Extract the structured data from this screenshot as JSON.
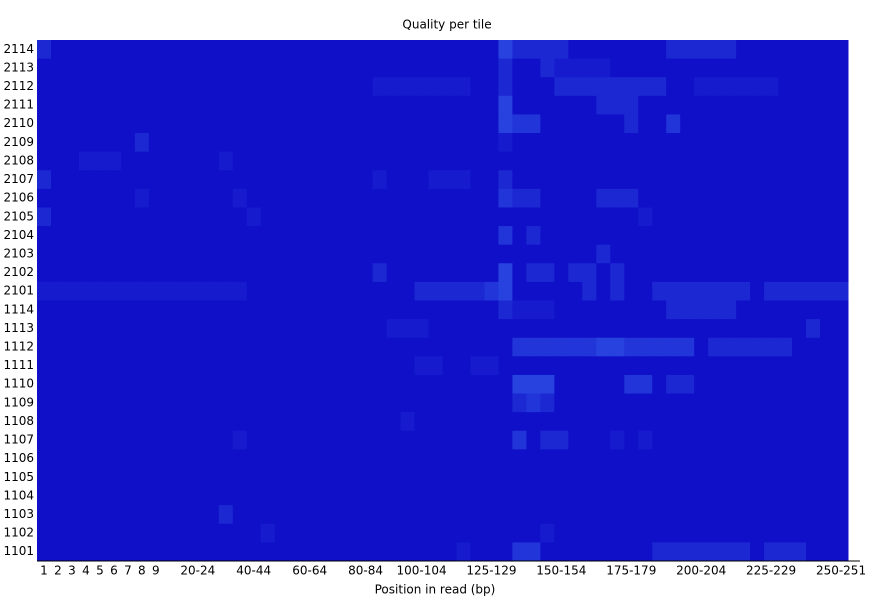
{
  "chart_data": {
    "type": "heatmap",
    "title": "Quality per tile",
    "xlabel": "Position in read (bp)",
    "categories": [
      "1",
      "2",
      "3",
      "4",
      "5",
      "6",
      "7",
      "8",
      "9",
      null,
      null,
      "20-24",
      null,
      null,
      null,
      "40-44",
      null,
      null,
      null,
      "60-64",
      null,
      null,
      null,
      "80-84",
      null,
      null,
      null,
      "100-104",
      null,
      null,
      null,
      null,
      "125-129",
      null,
      null,
      null,
      null,
      "150-154",
      null,
      null,
      null,
      null,
      "175-179",
      null,
      null,
      null,
      null,
      "200-204",
      null,
      null,
      null,
      null,
      "225-229",
      null,
      null,
      null,
      null,
      "250-251"
    ],
    "rows": [
      "2114",
      "2113",
      "2112",
      "2111",
      "2110",
      "2109",
      "2108",
      "2107",
      "2106",
      "2105",
      "2104",
      "2103",
      "2102",
      "2101",
      "1114",
      "1113",
      "1112",
      "1111",
      "1110",
      "1109",
      "1108",
      "1107",
      "1106",
      "1105",
      "1104",
      "1103",
      "1102",
      "1101"
    ],
    "zlim": [
      0,
      5
    ],
    "colormap": [
      "#1010c8",
      "#4a8cff"
    ],
    "z": [
      [
        1,
        0,
        0,
        0,
        0,
        0,
        0,
        0,
        0,
        0,
        0,
        0,
        0,
        0,
        0,
        0,
        0,
        0,
        0,
        0,
        0,
        0,
        0,
        0,
        0,
        0,
        0,
        0,
        0,
        0,
        0,
        0,
        0,
        2,
        1,
        1,
        1,
        1,
        0,
        0,
        0,
        0,
        0,
        0,
        0,
        1,
        1,
        1,
        1,
        1,
        0,
        0,
        0,
        0,
        0,
        0,
        0,
        0
      ],
      [
        0,
        0,
        0,
        0,
        0,
        0,
        0,
        0,
        0,
        0,
        0,
        0,
        0,
        0,
        0,
        0,
        0,
        0,
        0,
        0,
        0,
        0,
        0,
        0,
        0,
        0,
        0,
        0,
        0,
        0,
        0,
        0,
        0,
        1,
        0,
        0,
        1,
        0.5,
        0.5,
        0.5,
        0.5,
        0,
        0,
        0,
        0,
        0,
        0,
        0,
        0,
        0,
        0,
        0,
        0,
        0,
        0,
        0,
        0,
        0
      ],
      [
        0,
        0,
        0,
        0,
        0,
        0,
        0,
        0,
        0,
        0,
        0,
        0,
        0,
        0,
        0,
        0,
        0,
        0,
        0,
        0,
        0,
        0,
        0,
        0,
        0.5,
        0.5,
        0.5,
        0.5,
        0.5,
        0.5,
        0.5,
        0,
        0,
        1,
        0,
        0,
        0,
        1,
        1,
        1,
        1,
        1,
        1,
        1,
        1,
        0,
        0,
        0.5,
        0.5,
        0.5,
        0.5,
        0.5,
        0.5,
        0,
        0,
        0,
        0,
        0
      ],
      [
        0,
        0,
        0,
        0,
        0,
        0,
        0,
        0,
        0,
        0,
        0,
        0,
        0,
        0,
        0,
        0,
        0,
        0,
        0,
        0,
        0,
        0,
        0,
        0,
        0,
        0,
        0,
        0,
        0,
        0,
        0,
        0,
        0,
        2,
        0,
        0,
        0,
        0,
        0,
        0,
        1,
        1,
        1,
        0,
        0,
        0,
        0,
        0,
        0,
        0,
        0,
        0,
        0,
        0,
        0,
        0,
        0,
        0
      ],
      [
        0,
        0,
        0,
        0,
        0,
        0,
        0,
        0,
        0,
        0,
        0,
        0,
        0,
        0,
        0,
        0,
        0,
        0,
        0,
        0,
        0,
        0,
        0,
        0,
        0,
        0,
        0,
        0,
        0,
        0,
        0,
        0,
        0,
        2,
        1.5,
        1.5,
        0,
        0,
        0,
        0,
        0,
        0,
        1,
        0,
        0,
        1.5,
        0,
        0,
        0,
        0,
        0,
        0,
        0,
        0,
        0,
        0,
        0,
        0
      ],
      [
        0,
        0,
        0,
        0,
        0,
        0,
        0,
        1,
        0,
        0,
        0,
        0,
        0,
        0,
        0,
        0,
        0,
        0,
        0,
        0,
        0,
        0,
        0,
        0,
        0,
        0,
        0,
        0,
        0,
        0,
        0,
        0,
        0,
        0.5,
        0,
        0,
        0,
        0,
        0,
        0,
        0,
        0,
        0,
        0,
        0,
        0,
        0,
        0,
        0,
        0,
        0,
        0,
        0,
        0,
        0,
        0,
        0,
        0
      ],
      [
        0,
        0,
        0,
        0.5,
        0.5,
        0.5,
        0,
        0,
        0,
        0,
        0,
        0,
        0,
        0.5,
        0,
        0,
        0,
        0,
        0,
        0,
        0,
        0,
        0,
        0,
        0,
        0,
        0,
        0,
        0,
        0,
        0,
        0,
        0,
        0,
        0,
        0,
        0,
        0,
        0,
        0,
        0,
        0,
        0,
        0,
        0,
        0,
        0,
        0,
        0,
        0,
        0,
        0,
        0,
        0,
        0,
        0,
        0,
        0
      ],
      [
        1,
        0,
        0,
        0,
        0,
        0,
        0,
        0,
        0,
        0,
        0,
        0,
        0,
        0,
        0,
        0,
        0,
        0,
        0,
        0,
        0,
        0,
        0,
        0,
        0.5,
        0,
        0,
        0,
        0.5,
        0.5,
        0.5,
        0,
        0,
        1,
        0,
        0,
        0,
        0,
        0,
        0,
        0,
        0,
        0,
        0,
        0,
        0,
        0,
        0,
        0,
        0,
        0,
        0,
        0,
        0,
        0,
        0,
        0,
        0
      ],
      [
        0,
        0,
        0,
        0,
        0,
        0,
        0,
        0.5,
        0,
        0,
        0,
        0,
        0,
        0,
        0.5,
        0,
        0,
        0,
        0,
        0,
        0,
        0,
        0,
        0,
        0,
        0,
        0,
        0,
        0,
        0,
        0,
        0,
        0,
        1.5,
        1,
        1,
        0,
        0,
        0,
        0,
        1,
        1,
        1,
        0,
        0,
        0,
        0,
        0,
        0,
        0,
        0,
        0,
        0,
        0,
        0,
        0,
        0,
        0
      ],
      [
        1,
        0,
        0,
        0,
        0,
        0,
        0,
        0,
        0,
        0,
        0,
        0,
        0,
        0,
        0,
        0.5,
        0,
        0,
        0,
        0,
        0,
        0,
        0,
        0,
        0,
        0,
        0,
        0,
        0,
        0,
        0,
        0,
        0,
        0,
        0,
        0,
        0,
        0,
        0,
        0,
        0,
        0,
        0,
        0.5,
        0,
        0,
        0,
        0,
        0,
        0,
        0,
        0,
        0,
        0,
        0,
        0,
        0,
        0
      ],
      [
        0,
        0,
        0,
        0,
        0,
        0,
        0,
        0,
        0,
        0,
        0,
        0,
        0,
        0,
        0,
        0,
        0,
        0,
        0,
        0,
        0,
        0,
        0,
        0,
        0,
        0,
        0,
        0,
        0,
        0,
        0,
        0,
        0,
        1.5,
        0,
        1,
        0,
        0,
        0,
        0,
        0,
        0,
        0,
        0,
        0,
        0,
        0,
        0,
        0,
        0,
        0,
        0,
        0,
        0,
        0,
        0,
        0,
        0
      ],
      [
        0,
        0,
        0,
        0,
        0,
        0,
        0,
        0,
        0,
        0,
        0,
        0,
        0,
        0,
        0,
        0,
        0,
        0,
        0,
        0,
        0,
        0,
        0,
        0,
        0,
        0,
        0,
        0,
        0,
        0,
        0,
        0,
        0,
        0,
        0,
        0,
        0,
        0,
        0,
        0,
        1,
        0,
        0,
        0,
        0,
        0,
        0,
        0,
        0,
        0,
        0,
        0,
        0,
        0,
        0,
        0,
        0,
        0
      ],
      [
        0,
        0,
        0,
        0,
        0,
        0,
        0,
        0,
        0,
        0,
        0,
        0,
        0,
        0,
        0,
        0,
        0,
        0,
        0,
        0,
        0,
        0,
        0,
        0,
        1,
        0,
        0,
        0,
        0,
        0,
        0,
        0,
        0,
        2,
        0,
        1,
        1,
        0,
        1,
        1,
        0,
        1,
        0,
        0,
        0,
        0,
        0,
        0,
        0,
        0,
        0,
        0,
        0,
        0,
        0,
        0,
        0,
        0
      ],
      [
        0.5,
        0.5,
        0.5,
        0.5,
        0.5,
        0.5,
        0.5,
        0.5,
        0.5,
        0.5,
        0.5,
        0.5,
        0.5,
        0.5,
        0.5,
        0,
        0,
        0,
        0,
        0,
        0,
        0,
        0,
        0,
        0,
        0,
        0,
        1,
        1,
        1,
        1,
        1,
        1.5,
        2,
        0,
        0,
        0,
        0,
        0,
        1,
        0,
        1,
        0,
        0,
        1,
        1,
        1,
        1,
        1,
        1,
        1,
        0,
        1,
        1,
        1,
        1,
        1,
        1
      ],
      [
        0,
        0,
        0,
        0,
        0,
        0,
        0,
        0,
        0,
        0,
        0,
        0,
        0,
        0,
        0,
        0,
        0,
        0,
        0,
        0,
        0,
        0,
        0,
        0,
        0,
        0,
        0,
        0,
        0,
        0,
        0,
        0,
        0,
        1,
        0.5,
        0.5,
        0.5,
        0,
        0,
        0,
        0,
        0,
        0,
        0,
        0,
        1,
        1,
        1,
        1,
        1,
        0,
        0,
        0,
        0,
        0,
        0,
        0,
        0
      ],
      [
        0,
        0,
        0,
        0,
        0,
        0,
        0,
        0,
        0,
        0,
        0,
        0,
        0,
        0,
        0,
        0,
        0,
        0,
        0,
        0,
        0,
        0,
        0,
        0,
        0,
        0.5,
        0.5,
        0.5,
        0,
        0,
        0,
        0,
        0,
        0,
        0,
        0,
        0,
        0,
        0,
        0,
        0,
        0,
        0,
        0,
        0,
        0,
        0,
        0,
        0,
        0,
        0,
        0,
        0,
        0,
        0,
        1,
        0,
        0
      ],
      [
        0,
        0,
        0,
        0,
        0,
        0,
        0,
        0,
        0,
        0,
        0,
        0,
        0,
        0,
        0,
        0,
        0,
        0,
        0,
        0,
        0,
        0,
        0,
        0,
        0,
        0,
        0,
        0,
        0,
        0,
        0,
        0,
        0,
        0,
        1.5,
        1.5,
        1.5,
        1.5,
        1.5,
        1.5,
        2,
        2,
        1.5,
        1.5,
        1.5,
        1.5,
        1.5,
        0,
        1,
        1,
        1,
        1,
        1,
        1,
        0,
        0,
        0,
        0
      ],
      [
        0,
        0,
        0,
        0,
        0,
        0,
        0,
        0,
        0,
        0,
        0,
        0,
        0,
        0,
        0,
        0,
        0,
        0,
        0,
        0,
        0,
        0,
        0,
        0,
        0,
        0,
        0,
        0.5,
        0.5,
        0,
        0,
        0.5,
        0.5,
        0,
        0,
        0,
        0,
        0,
        0,
        0,
        0,
        0,
        0,
        0,
        0,
        0,
        0,
        0,
        0,
        0,
        0,
        0,
        0,
        0,
        0,
        0,
        0,
        0
      ],
      [
        0,
        0,
        0,
        0,
        0,
        0,
        0,
        0,
        0,
        0,
        0,
        0,
        0,
        0,
        0,
        0,
        0,
        0,
        0,
        0,
        0,
        0,
        0,
        0,
        0,
        0,
        0,
        0,
        0,
        0,
        0,
        0,
        0,
        0,
        2,
        2,
        2,
        0,
        0,
        0,
        0,
        0,
        1.5,
        1.5,
        0,
        1,
        1,
        0,
        0,
        0,
        0,
        0,
        0,
        0,
        0,
        0,
        0,
        0
      ],
      [
        0,
        0,
        0,
        0,
        0,
        0,
        0,
        0,
        0,
        0,
        0,
        0,
        0,
        0,
        0,
        0,
        0,
        0,
        0,
        0,
        0,
        0,
        0,
        0,
        0,
        0,
        0,
        0,
        0,
        0,
        0,
        0,
        0,
        0,
        1,
        1.5,
        1,
        0,
        0,
        0,
        0,
        0,
        0,
        0,
        0,
        0,
        0,
        0,
        0,
        0,
        0,
        0,
        0,
        0,
        0,
        0,
        0,
        0
      ],
      [
        0,
        0,
        0,
        0,
        0,
        0,
        0,
        0,
        0,
        0,
        0,
        0,
        0,
        0,
        0,
        0,
        0,
        0,
        0,
        0,
        0,
        0,
        0,
        0,
        0,
        0,
        0.5,
        0,
        0,
        0,
        0,
        0,
        0,
        0,
        0,
        0,
        0,
        0,
        0,
        0,
        0,
        0,
        0,
        0,
        0,
        0,
        0,
        0,
        0,
        0,
        0,
        0,
        0,
        0,
        0,
        0,
        0,
        0
      ],
      [
        0,
        0,
        0,
        0,
        0,
        0,
        0,
        0,
        0,
        0,
        0,
        0,
        0,
        0,
        0.5,
        0,
        0,
        0,
        0,
        0,
        0,
        0,
        0,
        0,
        0,
        0,
        0,
        0,
        0,
        0,
        0,
        0,
        0,
        0,
        1.5,
        0,
        1,
        1,
        0,
        0,
        0,
        0.5,
        0,
        0.5,
        0,
        0,
        0,
        0,
        0,
        0,
        0,
        0,
        0,
        0,
        0,
        0,
        0,
        0
      ],
      [
        0,
        0,
        0,
        0,
        0,
        0,
        0,
        0,
        0,
        0,
        0,
        0,
        0,
        0,
        0,
        0,
        0,
        0,
        0,
        0,
        0,
        0,
        0,
        0,
        0,
        0,
        0,
        0,
        0,
        0,
        0,
        0,
        0,
        0,
        0,
        0,
        0,
        0,
        0,
        0,
        0,
        0,
        0,
        0,
        0,
        0,
        0,
        0,
        0,
        0,
        0,
        0,
        0,
        0,
        0,
        0,
        0,
        0
      ],
      [
        0,
        0,
        0,
        0,
        0,
        0,
        0,
        0,
        0,
        0,
        0,
        0,
        0,
        0,
        0,
        0,
        0,
        0,
        0,
        0,
        0,
        0,
        0,
        0,
        0,
        0,
        0,
        0,
        0,
        0,
        0,
        0,
        0,
        0,
        0,
        0,
        0,
        0,
        0,
        0,
        0,
        0,
        0,
        0,
        0,
        0,
        0,
        0,
        0,
        0,
        0,
        0,
        0,
        0,
        0,
        0,
        0,
        0
      ],
      [
        0,
        0,
        0,
        0,
        0,
        0,
        0,
        0,
        0,
        0,
        0,
        0,
        0,
        0,
        0,
        0,
        0,
        0,
        0,
        0,
        0,
        0,
        0,
        0,
        0,
        0,
        0,
        0,
        0,
        0,
        0,
        0,
        0,
        0,
        0,
        0,
        0,
        0,
        0,
        0,
        0,
        0,
        0,
        0,
        0,
        0,
        0,
        0,
        0,
        0,
        0,
        0,
        0,
        0,
        0,
        0,
        0,
        0
      ],
      [
        0,
        0,
        0,
        0,
        0,
        0,
        0,
        0,
        0,
        0,
        0,
        0,
        0,
        1,
        0,
        0,
        0,
        0,
        0,
        0,
        0,
        0,
        0,
        0,
        0,
        0,
        0,
        0,
        0,
        0,
        0,
        0,
        0,
        0,
        0,
        0,
        0,
        0,
        0,
        0,
        0,
        0,
        0,
        0,
        0,
        0,
        0,
        0,
        0,
        0,
        0,
        0,
        0,
        0,
        0,
        0,
        0,
        0
      ],
      [
        0,
        0,
        0,
        0,
        0,
        0,
        0,
        0,
        0,
        0,
        0,
        0,
        0,
        0,
        0,
        0,
        0.5,
        0,
        0,
        0,
        0,
        0,
        0,
        0,
        0,
        0,
        0,
        0,
        0,
        0,
        0,
        0,
        0,
        0,
        0,
        0,
        0.5,
        0,
        0,
        0,
        0,
        0,
        0,
        0,
        0,
        0,
        0,
        0,
        0,
        0,
        0,
        0,
        0,
        0,
        0,
        0,
        0,
        0
      ],
      [
        0,
        0,
        0,
        0,
        0,
        0,
        0,
        0,
        0,
        0,
        0,
        0,
        0,
        0,
        0,
        0,
        0,
        0,
        0,
        0,
        0,
        0,
        0,
        0,
        0,
        0,
        0,
        0,
        0,
        0,
        0.5,
        0,
        0,
        0,
        1.5,
        1.5,
        0,
        0,
        0,
        0,
        0,
        0,
        0,
        0,
        1,
        1,
        1,
        1,
        1,
        1,
        1,
        0,
        1,
        1,
        1,
        0,
        0,
        0
      ]
    ]
  }
}
